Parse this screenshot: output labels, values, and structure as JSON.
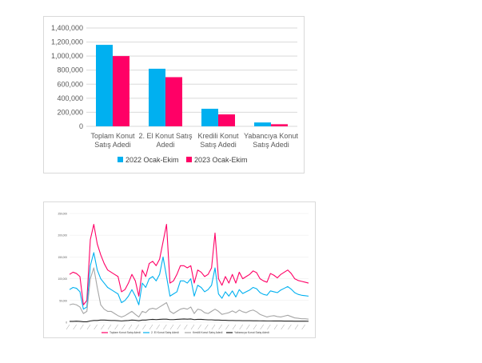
{
  "colors": {
    "blue": "#00b0f0",
    "pink": "#ff0066",
    "grid": "#d9d9d9",
    "grey": "#a6a6a6",
    "dark": "#262626"
  },
  "chart_data": [
    {
      "type": "bar",
      "title": "",
      "categories": [
        [
          "Toplam Konut",
          "Satış Adedi"
        ],
        [
          "2. El Konut Satış",
          "Adedi"
        ],
        [
          "Kredili Konut",
          "Satış Adedi"
        ],
        [
          "Yabancıya Konut",
          "Satış Adedi"
        ]
      ],
      "y_ticks": [
        "1,400,000",
        "1,200,000",
        "1,000,000",
        "800,000",
        "600,000",
        "400,000",
        "200,000",
        "0"
      ],
      "ylim": [
        0,
        1400000
      ],
      "series": [
        {
          "name": "2022 Ocak-Ekim",
          "color": "#00b0f0",
          "values": [
            1160000,
            820000,
            250000,
            55000
          ]
        },
        {
          "name": "2023 Ocak-Ekim",
          "color": "#ff0066",
          "values": [
            1000000,
            700000,
            170000,
            30000
          ]
        }
      ],
      "legend": "bottom",
      "grid": true
    },
    {
      "type": "line",
      "title": "",
      "ylim": [
        0,
        250000
      ],
      "y_ticks": [
        "250,000",
        "200,000",
        "150,000",
        "100,000",
        "50,000",
        "0"
      ],
      "x_count": 70,
      "series": [
        {
          "name": "Toplam Konut Satış Adedi",
          "color": "#ff0066",
          "values": [
            110000,
            115000,
            112000,
            105000,
            40000,
            50000,
            190000,
            225000,
            180000,
            155000,
            135000,
            120000,
            115000,
            110000,
            105000,
            70000,
            75000,
            90000,
            110000,
            95000,
            60000,
            120000,
            105000,
            135000,
            140000,
            130000,
            145000,
            185000,
            225000,
            90000,
            95000,
            110000,
            130000,
            130000,
            125000,
            130000,
            90000,
            120000,
            115000,
            105000,
            110000,
            125000,
            205000,
            100000,
            85000,
            105000,
            90000,
            110000,
            90000,
            115000,
            100000,
            105000,
            110000,
            118000,
            114000,
            100000,
            95000,
            92000,
            112000,
            108000,
            102000,
            110000,
            115000,
            120000,
            112000,
            100000,
            96000,
            94000,
            92000,
            90000
          ]
        },
        {
          "name": "2. El Konut Satış Adedi",
          "color": "#00b0f0",
          "values": [
            75000,
            80000,
            78000,
            70000,
            30000,
            35000,
            130000,
            160000,
            120000,
            100000,
            90000,
            80000,
            75000,
            70000,
            65000,
            45000,
            50000,
            60000,
            75000,
            60000,
            40000,
            90000,
            80000,
            100000,
            105000,
            95000,
            110000,
            150000,
            105000,
            60000,
            65000,
            70000,
            95000,
            95000,
            90000,
            100000,
            60000,
            85000,
            80000,
            70000,
            75000,
            85000,
            125000,
            65000,
            55000,
            70000,
            60000,
            72000,
            58000,
            75000,
            66000,
            70000,
            74000,
            80000,
            77000,
            68000,
            64000,
            62000,
            72000,
            70000,
            68000,
            74000,
            78000,
            82000,
            76000,
            68000,
            64000,
            62000,
            61000,
            60000
          ]
        },
        {
          "name": "Kredili Konut Satış Adedi",
          "color": "#a6a6a6",
          "values": [
            40000,
            42000,
            40000,
            35000,
            20000,
            25000,
            100000,
            125000,
            80000,
            40000,
            30000,
            25000,
            25000,
            20000,
            15000,
            12000,
            15000,
            20000,
            25000,
            18000,
            12000,
            25000,
            22000,
            30000,
            32000,
            30000,
            35000,
            40000,
            45000,
            25000,
            20000,
            25000,
            30000,
            32000,
            30000,
            35000,
            20000,
            30000,
            28000,
            22000,
            20000,
            25000,
            30000,
            25000,
            18000,
            20000,
            22000,
            26000,
            22000,
            28000,
            24000,
            22000,
            26000,
            28000,
            24000,
            18000,
            15000,
            12000,
            14000,
            15000,
            13000,
            12000,
            14000,
            16000,
            13000,
            10000,
            9000,
            8000,
            8000,
            7000
          ]
        },
        {
          "name": "Yabancıya Konut Satış Adedi",
          "color": "#262626",
          "values": [
            2000,
            2000,
            2500,
            2000,
            1000,
            1000,
            3000,
            4000,
            4000,
            5000,
            5000,
            4500,
            4000,
            4000,
            3500,
            3000,
            3500,
            4000,
            5000,
            4500,
            3500,
            5000,
            5000,
            6000,
            6500,
            6000,
            6500,
            7000,
            7000,
            6000,
            6000,
            6500,
            7000,
            7500,
            7000,
            7500,
            6000,
            6500,
            6500,
            6000,
            5500,
            5500,
            5000,
            5000,
            4500,
            4500,
            4000,
            4000,
            3800,
            3800,
            3600,
            3500,
            3500,
            3400,
            3300,
            3200,
            3100,
            3000,
            3000,
            2900,
            2800,
            2800,
            2700,
            2700,
            2600,
            2500,
            2500,
            2400,
            2400,
            2300
          ]
        }
      ],
      "legend": "bottom",
      "grid": true
    }
  ]
}
